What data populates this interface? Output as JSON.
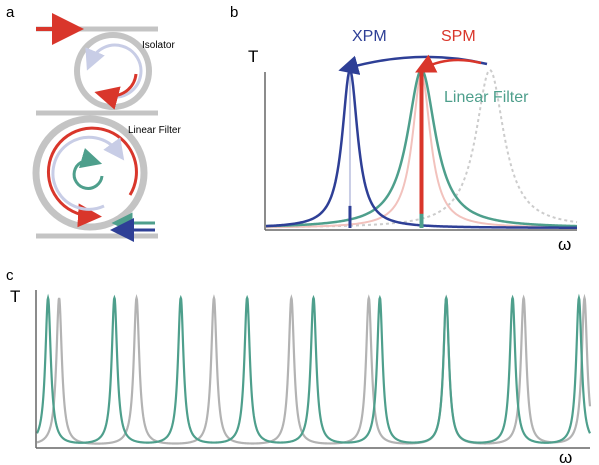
{
  "panels": {
    "a": {
      "label": "a",
      "isolator_label": "Isolator",
      "filter_label": "Linear Filter"
    },
    "b": {
      "label": "b",
      "y_label": "T",
      "x_label": "ω",
      "xpm_label": "XPM",
      "spm_label": "SPM",
      "filter_label": "Linear Filter"
    },
    "c": {
      "label": "c",
      "y_label": "T",
      "x_label": "ω"
    }
  },
  "colors": {
    "xpm": "#2e3f96",
    "spm": "#d9362b",
    "filter": "#4e9f8c",
    "gray": "#b3b3b3",
    "ring": "#c4c4c4",
    "light_blue": "#c8cde6",
    "light_red": "#f2c2bd"
  },
  "chart_data": [
    {
      "type": "line",
      "panel": "b",
      "xlabel": "ω",
      "ylabel": "T",
      "series": [
        {
          "name": "XPM",
          "color": "#2e3f96",
          "center": 0.27,
          "width": 0.06,
          "peak": 1.0
        },
        {
          "name": "SPM",
          "color": "#d9362b",
          "center": 0.5,
          "width": 0.07,
          "peak": 1.0
        },
        {
          "name": "Linear Filter",
          "color": "#4e9f8c",
          "center": 0.5,
          "width": 0.11,
          "peak": 1.0
        },
        {
          "color": "#cccccc",
          "center": 0.72,
          "width": 0.11,
          "peak": 1.0
        }
      ]
    },
    {
      "type": "line",
      "panel": "c",
      "xlabel": "ω",
      "ylabel": "T",
      "series": [
        {
          "color": "#4e9f8c",
          "centers": [
            0.02,
            0.14,
            0.26,
            0.38,
            0.5,
            0.62,
            0.74,
            0.86,
            0.98
          ]
        },
        {
          "color": "#b3b3b3",
          "centers": [
            0.04,
            0.18,
            0.32,
            0.46,
            0.6,
            0.74,
            0.88,
            0.99
          ]
        }
      ]
    }
  ]
}
